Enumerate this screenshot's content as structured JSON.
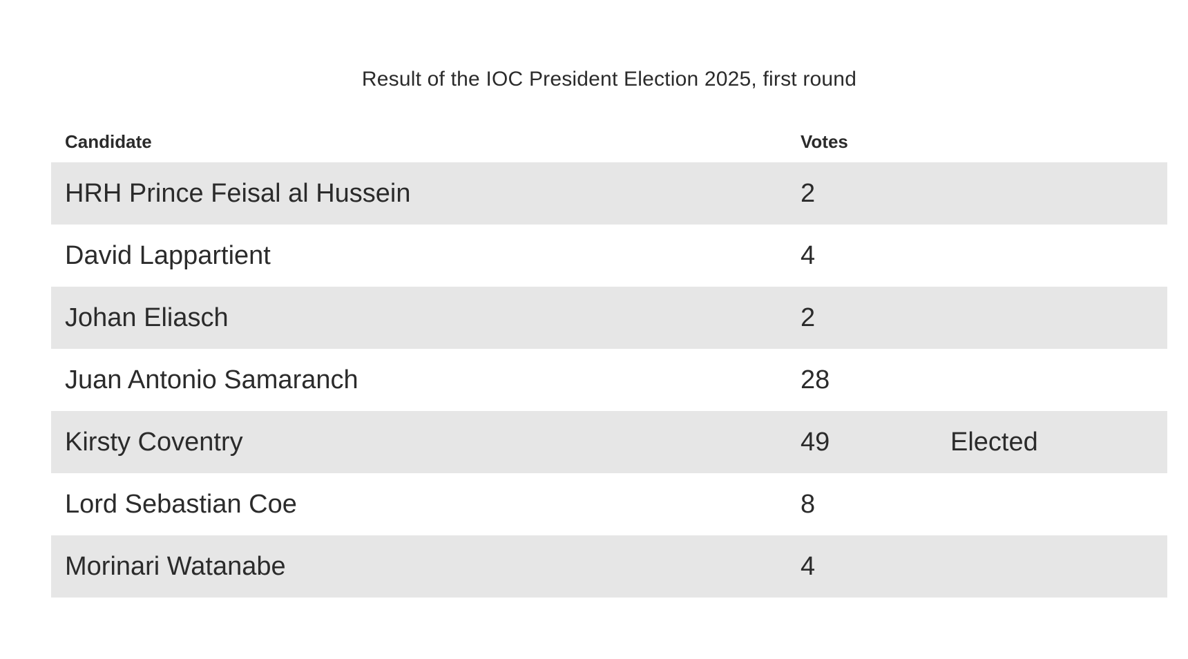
{
  "chart_data": {
    "type": "table",
    "title": "Result of the IOC President Election 2025, first round",
    "columns": [
      "Candidate",
      "Votes",
      ""
    ],
    "rows": [
      {
        "candidate": "HRH Prince Feisal al Hussein",
        "votes": 2,
        "status": ""
      },
      {
        "candidate": "David Lappartient",
        "votes": 4,
        "status": ""
      },
      {
        "candidate": "Johan Eliasch",
        "votes": 2,
        "status": ""
      },
      {
        "candidate": "Juan Antonio Samaranch",
        "votes": 28,
        "status": ""
      },
      {
        "candidate": "Kirsty Coventry",
        "votes": 49,
        "status": "Elected"
      },
      {
        "candidate": "Lord Sebastian Coe",
        "votes": 8,
        "status": ""
      },
      {
        "candidate": "Morinari Watanabe",
        "votes": 4,
        "status": ""
      }
    ],
    "colors": {
      "row_band": "#e6e6e6",
      "row_plain": "#ffffff",
      "text": "#2b2b2b"
    }
  }
}
